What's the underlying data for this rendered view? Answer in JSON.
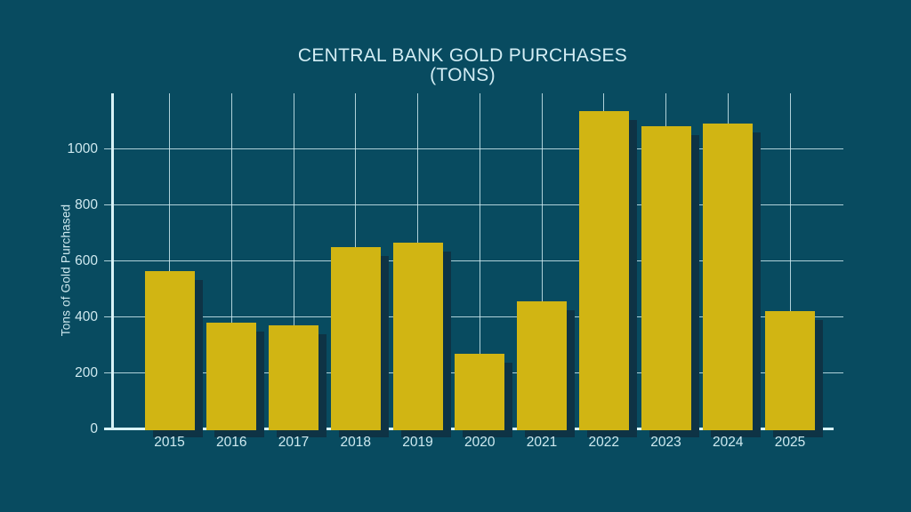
{
  "title": {
    "line1": "CENTRAL BANK GOLD PURCHASES",
    "line2": "(TONS)"
  },
  "chart_data": {
    "type": "bar",
    "title": "CENTRAL BANK GOLD PURCHASES (TONS)",
    "categories": [
      "2015",
      "2016",
      "2017",
      "2018",
      "2019",
      "2020",
      "2021",
      "2022",
      "2023",
      "2024",
      "2025"
    ],
    "values": [
      565,
      380,
      370,
      650,
      665,
      270,
      455,
      1135,
      1080,
      1090,
      420
    ],
    "xlabel": "",
    "ylabel": "Tons of Gold Purchased",
    "yticks": [
      0,
      200,
      400,
      600,
      800,
      1000
    ],
    "ylim": [
      0,
      1200
    ],
    "grid": true,
    "legend": false,
    "colors": {
      "background": "#084b60",
      "bar": "#d1b513",
      "bar_shadow": "#0e3345",
      "gridline": "#cde9ee",
      "axis": "#d8f2f6",
      "text": "#cfe9ef"
    }
  }
}
